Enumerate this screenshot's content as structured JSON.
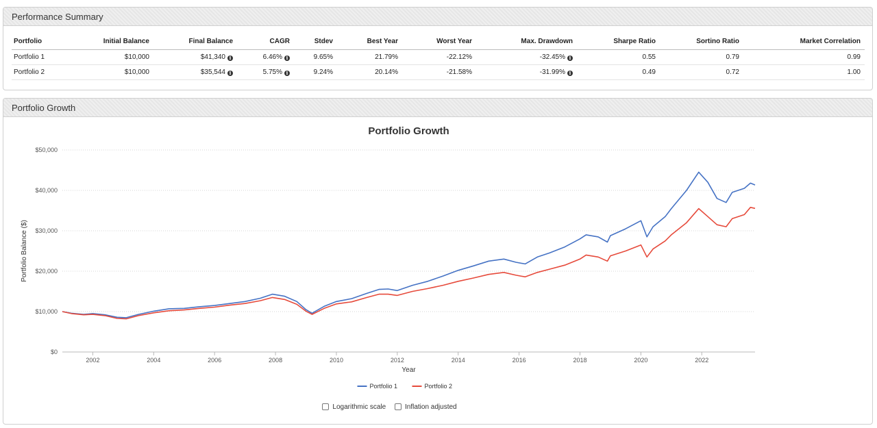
{
  "summary": {
    "title": "Performance Summary",
    "headers": [
      "Portfolio",
      "Initial Balance",
      "Final Balance",
      "CAGR",
      "Stdev",
      "Best Year",
      "Worst Year",
      "Max. Drawdown",
      "Sharpe Ratio",
      "Sortino Ratio",
      "Market Correlation"
    ],
    "rows": [
      {
        "name": "Portfolio 1",
        "initial": "$10,000",
        "final": "$41,340",
        "cagr": "6.46%",
        "stdev": "9.65%",
        "best": "21.79%",
        "worst": "-22.12%",
        "drawdown": "-32.45%",
        "sharpe": "0.55",
        "sortino": "0.79",
        "corr": "0.99"
      },
      {
        "name": "Portfolio 2",
        "initial": "$10,000",
        "final": "$35,544",
        "cagr": "5.75%",
        "stdev": "9.24%",
        "best": "20.14%",
        "worst": "-21.58%",
        "drawdown": "-31.99%",
        "sharpe": "0.49",
        "sortino": "0.72",
        "corr": "1.00"
      }
    ]
  },
  "growth": {
    "panel_title": "Portfolio Growth",
    "options": {
      "log_label": "Logarithmic scale",
      "inflation_label": "Inflation adjusted"
    }
  },
  "chart_data": {
    "type": "line",
    "title": "Portfolio Growth",
    "xlabel": "Year",
    "ylabel": "Portfolio Balance ($)",
    "xlim": [
      2001.0,
      2023.75
    ],
    "ylim": [
      0,
      50000
    ],
    "xticks": [
      2002,
      2004,
      2006,
      2008,
      2010,
      2012,
      2014,
      2016,
      2018,
      2020,
      2022
    ],
    "yticks": [
      0,
      10000,
      20000,
      30000,
      40000,
      50000
    ],
    "ytick_labels": [
      "$0",
      "$10,000",
      "$20,000",
      "$30,000",
      "$40,000",
      "$50,000"
    ],
    "grid": true,
    "legend": "bottom-center",
    "series": [
      {
        "name": "Portfolio 1",
        "color": "#4572c4",
        "points": [
          [
            2001.0,
            10000
          ],
          [
            2001.3,
            9600
          ],
          [
            2001.7,
            9300
          ],
          [
            2002.0,
            9500
          ],
          [
            2002.4,
            9200
          ],
          [
            2002.8,
            8600
          ],
          [
            2003.1,
            8500
          ],
          [
            2003.5,
            9300
          ],
          [
            2004.0,
            10100
          ],
          [
            2004.5,
            10700
          ],
          [
            2005.0,
            10800
          ],
          [
            2005.5,
            11200
          ],
          [
            2006.0,
            11500
          ],
          [
            2006.5,
            12000
          ],
          [
            2007.0,
            12500
          ],
          [
            2007.5,
            13300
          ],
          [
            2007.9,
            14300
          ],
          [
            2008.3,
            13800
          ],
          [
            2008.7,
            12500
          ],
          [
            2009.0,
            10500
          ],
          [
            2009.2,
            9600
          ],
          [
            2009.6,
            11300
          ],
          [
            2010.0,
            12500
          ],
          [
            2010.5,
            13200
          ],
          [
            2011.0,
            14500
          ],
          [
            2011.4,
            15500
          ],
          [
            2011.7,
            15600
          ],
          [
            2012.0,
            15200
          ],
          [
            2012.5,
            16500
          ],
          [
            2013.0,
            17500
          ],
          [
            2013.5,
            18800
          ],
          [
            2014.0,
            20200
          ],
          [
            2014.5,
            21300
          ],
          [
            2015.0,
            22500
          ],
          [
            2015.5,
            23000
          ],
          [
            2015.9,
            22200
          ],
          [
            2016.2,
            21800
          ],
          [
            2016.6,
            23500
          ],
          [
            2017.0,
            24500
          ],
          [
            2017.5,
            26000
          ],
          [
            2018.0,
            28000
          ],
          [
            2018.2,
            29000
          ],
          [
            2018.6,
            28500
          ],
          [
            2018.9,
            27200
          ],
          [
            2019.0,
            28800
          ],
          [
            2019.5,
            30500
          ],
          [
            2020.0,
            32500
          ],
          [
            2020.2,
            28500
          ],
          [
            2020.4,
            31000
          ],
          [
            2020.8,
            33500
          ],
          [
            2021.0,
            35500
          ],
          [
            2021.5,
            40000
          ],
          [
            2021.9,
            44500
          ],
          [
            2022.2,
            42000
          ],
          [
            2022.5,
            38000
          ],
          [
            2022.8,
            37000
          ],
          [
            2023.0,
            39500
          ],
          [
            2023.4,
            40500
          ],
          [
            2023.6,
            41800
          ],
          [
            2023.75,
            41340
          ]
        ]
      },
      {
        "name": "Portfolio 2",
        "color": "#e64a3b",
        "points": [
          [
            2001.0,
            10000
          ],
          [
            2001.3,
            9500
          ],
          [
            2001.7,
            9200
          ],
          [
            2002.0,
            9300
          ],
          [
            2002.4,
            9000
          ],
          [
            2002.8,
            8300
          ],
          [
            2003.1,
            8200
          ],
          [
            2003.5,
            9000
          ],
          [
            2004.0,
            9700
          ],
          [
            2004.5,
            10200
          ],
          [
            2005.0,
            10400
          ],
          [
            2005.5,
            10800
          ],
          [
            2006.0,
            11100
          ],
          [
            2006.5,
            11600
          ],
          [
            2007.0,
            12000
          ],
          [
            2007.5,
            12700
          ],
          [
            2007.9,
            13500
          ],
          [
            2008.3,
            13000
          ],
          [
            2008.7,
            11800
          ],
          [
            2009.0,
            10100
          ],
          [
            2009.2,
            9300
          ],
          [
            2009.6,
            10800
          ],
          [
            2010.0,
            11900
          ],
          [
            2010.5,
            12400
          ],
          [
            2011.0,
            13500
          ],
          [
            2011.4,
            14300
          ],
          [
            2011.7,
            14300
          ],
          [
            2012.0,
            14000
          ],
          [
            2012.5,
            15000
          ],
          [
            2013.0,
            15700
          ],
          [
            2013.5,
            16500
          ],
          [
            2014.0,
            17500
          ],
          [
            2014.5,
            18300
          ],
          [
            2015.0,
            19200
          ],
          [
            2015.5,
            19700
          ],
          [
            2015.9,
            19000
          ],
          [
            2016.2,
            18600
          ],
          [
            2016.6,
            19700
          ],
          [
            2017.0,
            20500
          ],
          [
            2017.5,
            21500
          ],
          [
            2018.0,
            23000
          ],
          [
            2018.2,
            24000
          ],
          [
            2018.6,
            23500
          ],
          [
            2018.9,
            22500
          ],
          [
            2019.0,
            23800
          ],
          [
            2019.5,
            25000
          ],
          [
            2020.0,
            26500
          ],
          [
            2020.2,
            23500
          ],
          [
            2020.4,
            25500
          ],
          [
            2020.8,
            27500
          ],
          [
            2021.0,
            29000
          ],
          [
            2021.5,
            32000
          ],
          [
            2021.9,
            35500
          ],
          [
            2022.2,
            33500
          ],
          [
            2022.5,
            31500
          ],
          [
            2022.8,
            31000
          ],
          [
            2023.0,
            33000
          ],
          [
            2023.4,
            34000
          ],
          [
            2023.6,
            35800
          ],
          [
            2023.75,
            35544
          ]
        ]
      }
    ]
  }
}
